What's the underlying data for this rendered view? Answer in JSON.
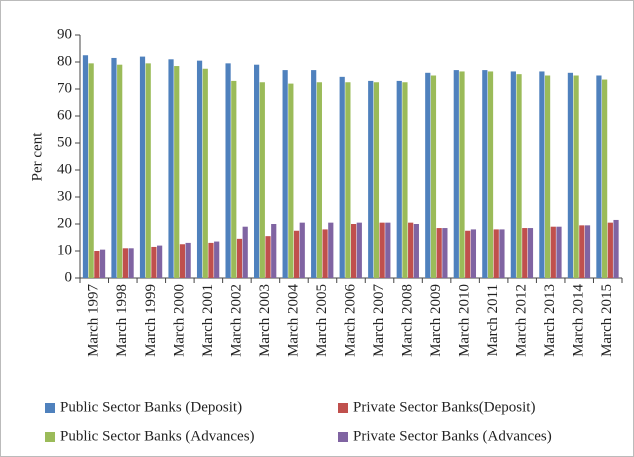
{
  "chart_data": {
    "type": "bar",
    "y_label": "Per cent",
    "categories": [
      "March 1997",
      "March 1998",
      "March 1999",
      "March 2000",
      "March 2001",
      "March 2002",
      "March 2003",
      "March 2004",
      "March 2005",
      "March 2006",
      "March 2007",
      "March 2008",
      "March 2009",
      "March 2010",
      "March 2011",
      "March 2012",
      "March 2013",
      "March 2014",
      "March 2015"
    ],
    "series": [
      {
        "name": "Public Sector Banks (Deposit)",
        "color": "#4f81bd",
        "values": [
          82.5,
          81.5,
          82,
          81,
          80.5,
          79.5,
          79,
          77,
          77,
          74.5,
          73,
          73,
          76,
          77,
          77,
          76.5,
          76.5,
          76,
          75
        ]
      },
      {
        "name": "Private Sector Banks(Deposit)",
        "color": "#c0504d",
        "values": [
          10,
          11,
          11.5,
          12.5,
          13,
          14.5,
          15.5,
          17.5,
          18,
          20,
          20.5,
          20.5,
          18.5,
          17.5,
          18,
          18.5,
          19,
          19.5,
          20.5
        ]
      },
      {
        "name": "Public Sector Banks (Advances)",
        "color": "#9bbb59",
        "values": [
          79.5,
          79,
          79.5,
          78.5,
          77.5,
          73,
          72.5,
          72,
          72.5,
          72.5,
          72.5,
          72.5,
          75,
          76.5,
          76.5,
          75.5,
          75,
          75,
          73.5
        ]
      },
      {
        "name": "Private Sector Banks (Advances)",
        "color": "#8064a2",
        "values": [
          10.5,
          11,
          12,
          13,
          13.5,
          19,
          20,
          20.5,
          20.5,
          20.5,
          20.5,
          20,
          18.5,
          18,
          18,
          18.5,
          19,
          19.5,
          21.5
        ]
      }
    ],
    "ylim": [
      0,
      90
    ],
    "yticks": [
      0,
      10,
      20,
      30,
      40,
      50,
      60,
      70,
      80,
      90
    ]
  }
}
